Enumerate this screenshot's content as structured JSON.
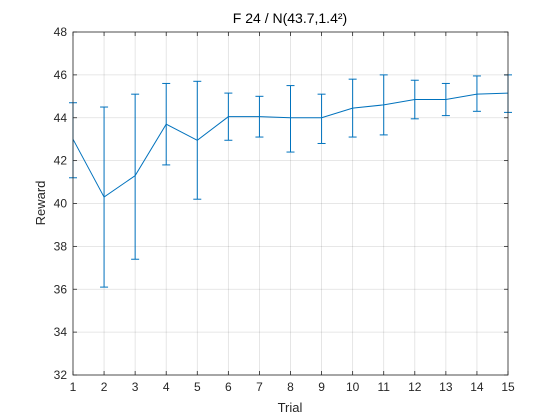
{
  "chart_data": {
    "type": "line",
    "title": "F 24 / N(43.7,1.4²)",
    "xlabel": "Trial",
    "ylabel": "Reward",
    "xlim": [
      1,
      15
    ],
    "ylim": [
      32,
      48
    ],
    "x_ticks": [
      1,
      2,
      3,
      4,
      5,
      6,
      7,
      8,
      9,
      10,
      11,
      12,
      13,
      14,
      15
    ],
    "y_ticks": [
      32,
      34,
      36,
      38,
      40,
      42,
      44,
      46,
      48
    ],
    "x_tick_labels": [
      "1",
      "2",
      "3",
      "4",
      "5",
      "6",
      "7",
      "8",
      "9",
      "10",
      "11",
      "12",
      "13",
      "14",
      "15"
    ],
    "y_tick_labels": [
      "32",
      "34",
      "36",
      "38",
      "40",
      "42",
      "44",
      "46",
      "48"
    ],
    "grid": true,
    "box": true,
    "series": [
      {
        "color": "#0072BD",
        "x": [
          1,
          2,
          3,
          4,
          5,
          6,
          7,
          8,
          9,
          10,
          11,
          12,
          13,
          14,
          15
        ],
        "y": [
          43.0,
          40.3,
          41.3,
          43.7,
          42.95,
          44.05,
          44.05,
          44.0,
          44.0,
          44.45,
          44.6,
          44.85,
          44.85,
          45.1,
          45.15
        ],
        "err_low": [
          41.2,
          36.1,
          37.4,
          41.8,
          40.2,
          42.95,
          43.1,
          42.4,
          42.8,
          43.1,
          43.2,
          43.95,
          44.1,
          44.3,
          44.25
        ],
        "err_high": [
          44.7,
          44.5,
          45.1,
          45.6,
          45.7,
          45.15,
          45.0,
          45.5,
          45.1,
          45.8,
          46.0,
          45.75,
          45.6,
          45.95,
          46.0
        ]
      }
    ]
  }
}
